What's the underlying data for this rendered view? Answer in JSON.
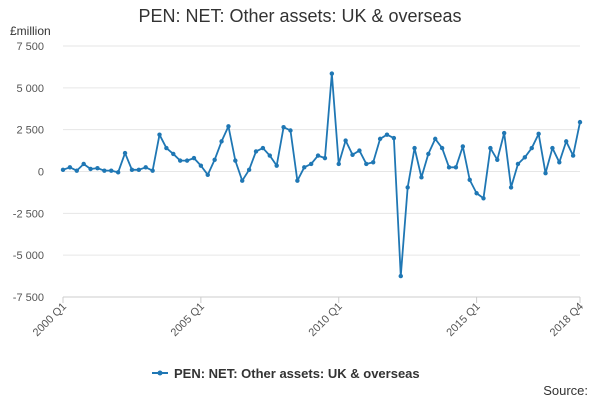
{
  "chart_data": {
    "type": "line",
    "title": "PEN: NET: Other assets: UK & overseas",
    "ylabel": "£million",
    "ylim": [
      -7500,
      7500
    ],
    "yticks": [
      -7500,
      -5000,
      -2500,
      0,
      2500,
      5000,
      7500
    ],
    "ytick_labels": [
      "-7 500",
      "-5 000",
      "-2 500",
      "0",
      "2 500",
      "5 000",
      "7 500"
    ],
    "xtick_labels": [
      "2000 Q1",
      "2005 Q1",
      "2010 Q1",
      "2015 Q1",
      "2018 Q4"
    ],
    "xtick_index": [
      0,
      20,
      40,
      60,
      75
    ],
    "grid": true,
    "legend_position": "bottom",
    "series": [
      {
        "name": "PEN: NET: Other assets: UK & overseas",
        "color": "#1f77b4",
        "values": [
          100,
          250,
          50,
          450,
          150,
          200,
          50,
          50,
          -50,
          1100,
          100,
          100,
          250,
          50,
          2200,
          1400,
          1050,
          650,
          650,
          800,
          350,
          -200,
          700,
          1800,
          2700,
          650,
          -550,
          100,
          1200,
          1400,
          950,
          350,
          2650,
          2450,
          -550,
          250,
          450,
          950,
          800,
          5850,
          450,
          1850,
          1000,
          1250,
          450,
          550,
          1950,
          2200,
          2000,
          -6250,
          -950,
          1400,
          -350,
          1050,
          1950,
          1400,
          250,
          250,
          1500,
          -500,
          -1300,
          -1600,
          1400,
          700,
          2300,
          -950,
          450,
          850,
          1400,
          2250,
          -100,
          1400,
          550,
          1800,
          950,
          2950
        ]
      }
    ]
  },
  "footer": {
    "source_label": "Source:"
  }
}
